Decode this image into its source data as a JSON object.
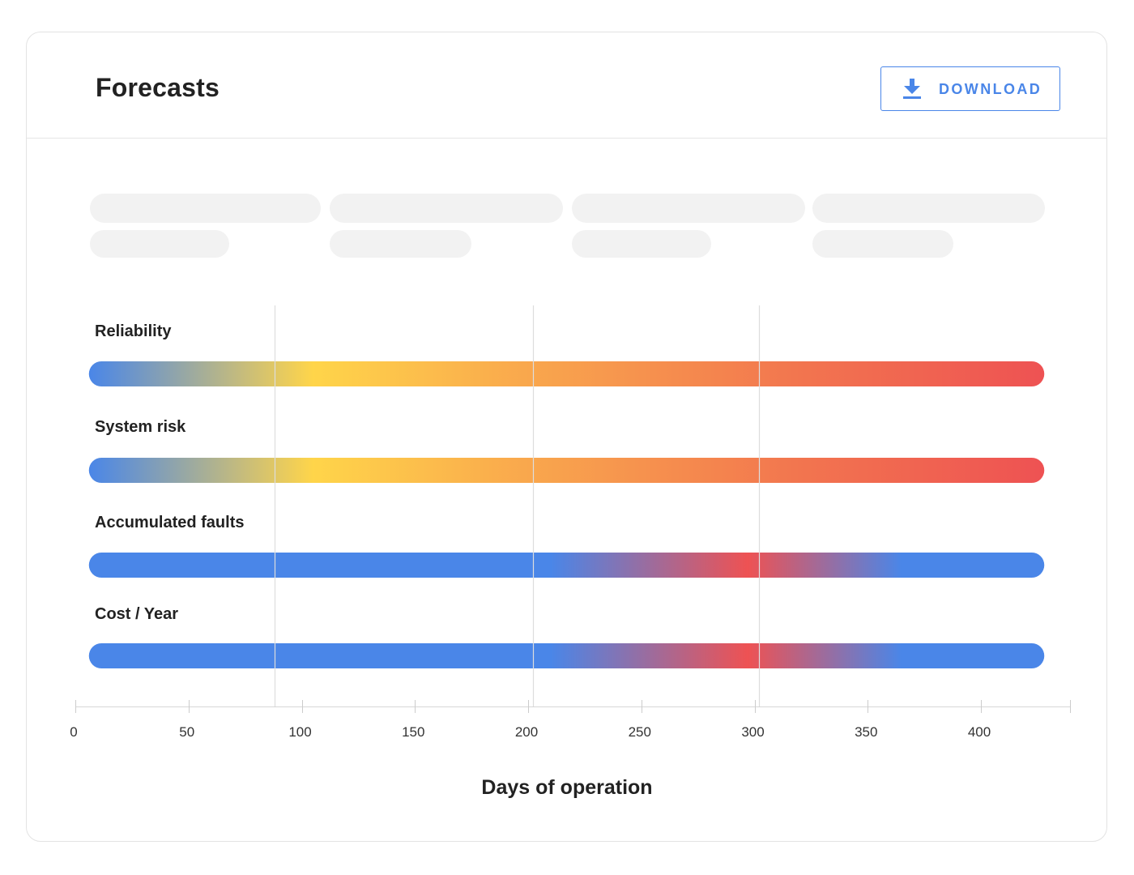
{
  "header": {
    "title": "Forecasts",
    "download_label": "DOWNLOAD"
  },
  "colors": {
    "accent": "#4a86e8",
    "blue": "#4a86e8",
    "yellow": "#ffd54a",
    "orange": "#f7a04b",
    "red": "#ee5253"
  },
  "chart_data": {
    "type": "heatmap",
    "xlabel": "Days of operation",
    "xlim": [
      0,
      440
    ],
    "x_ticks": [
      0,
      50,
      100,
      150,
      200,
      250,
      300,
      350,
      400
    ],
    "reference_lines_x": [
      88,
      202,
      302
    ],
    "grid": false,
    "rows": [
      {
        "name": "Reliability",
        "x_start": 6,
        "x_end": 428,
        "gradient": [
          {
            "x": 6,
            "color": "#4a86e8"
          },
          {
            "x": 105,
            "color": "#ffd54a"
          },
          {
            "x": 200,
            "color": "#f9a74d"
          },
          {
            "x": 320,
            "color": "#f2754f"
          },
          {
            "x": 428,
            "color": "#ee5253"
          }
        ]
      },
      {
        "name": "System risk",
        "x_start": 6,
        "x_end": 428,
        "gradient": [
          {
            "x": 6,
            "color": "#4a86e8"
          },
          {
            "x": 105,
            "color": "#ffd54a"
          },
          {
            "x": 200,
            "color": "#f9a74d"
          },
          {
            "x": 320,
            "color": "#f2754f"
          },
          {
            "x": 428,
            "color": "#ee5253"
          }
        ]
      },
      {
        "name": "Accumulated faults",
        "x_start": 6,
        "x_end": 428,
        "gradient": [
          {
            "x": 6,
            "color": "#4a86e8"
          },
          {
            "x": 210,
            "color": "#4a86e8"
          },
          {
            "x": 297,
            "color": "#ee5253"
          },
          {
            "x": 365,
            "color": "#4a86e8"
          },
          {
            "x": 428,
            "color": "#4a86e8"
          }
        ]
      },
      {
        "name": "Cost / Year",
        "x_start": 6,
        "x_end": 428,
        "gradient": [
          {
            "x": 6,
            "color": "#4a86e8"
          },
          {
            "x": 210,
            "color": "#4a86e8"
          },
          {
            "x": 297,
            "color": "#ee5253"
          },
          {
            "x": 365,
            "color": "#4a86e8"
          },
          {
            "x": 428,
            "color": "#4a86e8"
          }
        ]
      }
    ]
  }
}
